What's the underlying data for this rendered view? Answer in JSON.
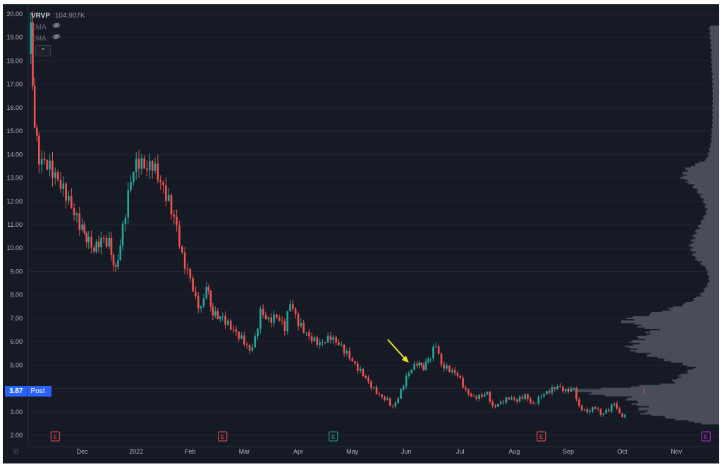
{
  "legend": {
    "indicator": "VRVP",
    "indicator_value": "104.907K",
    "ema_1": "EMA",
    "ema_2": "EMA",
    "eye_icon": "eye-off-icon"
  },
  "collapse_icon": "chevron-up-icon",
  "settings_icon": "gear-icon",
  "price_tag": {
    "value": "3.87",
    "label": "Post"
  },
  "colors": {
    "background": "#161a25",
    "grid": "#222633",
    "up": "#26a69a",
    "down": "#ef5350",
    "volume_profile": "#5b5f6b",
    "arrow": "#f0e422",
    "axis_text": "#b2b5be",
    "earnings": "#ef5350",
    "earnings_up": "#26a69a",
    "earnings_future": "#c030d6"
  },
  "chart_data": {
    "type": "candlestick",
    "ylim": [
      2,
      20.2
    ],
    "y_ticks": [
      "2.00",
      "3.00",
      "4.00",
      "5.00",
      "6.00",
      "7.00",
      "8.00",
      "9.00",
      "10.00",
      "11.00",
      "12.00",
      "13.00",
      "14.00",
      "15.00",
      "16.00",
      "17.00",
      "18.00",
      "19.00",
      "20.00"
    ],
    "x_ticks": [
      "Dec",
      "2022",
      "Feb",
      "Mar",
      "Apr",
      "May",
      "Jun",
      "Jul",
      "Aug",
      "Sep",
      "Oct",
      "Nov"
    ],
    "earnings_markers": [
      {
        "label": "E",
        "x_after": "Nov",
        "kind": "down"
      },
      {
        "label": "E",
        "x_after": "Mar",
        "kind": "down"
      },
      {
        "label": "E",
        "x_after": "May",
        "kind": "up"
      },
      {
        "label": "E",
        "x_after": "Aug",
        "kind": "down"
      },
      {
        "label": "E",
        "x_after": "Nov",
        "kind": "future"
      }
    ],
    "close_series": [
      {
        "m": 0.0,
        "p": 18.3
      },
      {
        "m": 0.05,
        "p": 19.4
      },
      {
        "m": 0.12,
        "p": 15.2
      },
      {
        "m": 0.2,
        "p": 13.8
      },
      {
        "m": 0.35,
        "p": 13.6
      },
      {
        "m": 0.5,
        "p": 13.1
      },
      {
        "m": 0.7,
        "p": 12.3
      },
      {
        "m": 0.85,
        "p": 11.5
      },
      {
        "m": 1.0,
        "p": 10.8
      },
      {
        "m": 1.12,
        "p": 10.3
      },
      {
        "m": 1.22,
        "p": 9.9
      },
      {
        "m": 1.35,
        "p": 10.4
      },
      {
        "m": 1.5,
        "p": 10.2
      },
      {
        "m": 1.62,
        "p": 9.0
      },
      {
        "m": 1.75,
        "p": 10.8
      },
      {
        "m": 1.85,
        "p": 12.3
      },
      {
        "m": 1.95,
        "p": 13.4
      },
      {
        "m": 2.05,
        "p": 13.7
      },
      {
        "m": 2.2,
        "p": 13.4
      },
      {
        "m": 2.3,
        "p": 13.6
      },
      {
        "m": 2.45,
        "p": 12.8
      },
      {
        "m": 2.6,
        "p": 12.0
      },
      {
        "m": 2.75,
        "p": 10.9
      },
      {
        "m": 2.85,
        "p": 9.6
      },
      {
        "m": 3.0,
        "p": 8.7
      },
      {
        "m": 3.1,
        "p": 7.8
      },
      {
        "m": 3.2,
        "p": 7.4
      },
      {
        "m": 3.3,
        "p": 8.4
      },
      {
        "m": 3.42,
        "p": 7.2
      },
      {
        "m": 3.6,
        "p": 7.0
      },
      {
        "m": 3.8,
        "p": 6.5
      },
      {
        "m": 4.0,
        "p": 6.0
      },
      {
        "m": 4.1,
        "p": 5.6
      },
      {
        "m": 4.2,
        "p": 6.1
      },
      {
        "m": 4.3,
        "p": 7.3
      },
      {
        "m": 4.45,
        "p": 6.9
      },
      {
        "m": 4.6,
        "p": 7.1
      },
      {
        "m": 4.75,
        "p": 6.6
      },
      {
        "m": 4.85,
        "p": 7.7
      },
      {
        "m": 5.0,
        "p": 6.8
      },
      {
        "m": 5.2,
        "p": 6.2
      },
      {
        "m": 5.4,
        "p": 5.9
      },
      {
        "m": 5.6,
        "p": 6.2
      },
      {
        "m": 5.75,
        "p": 5.9
      },
      {
        "m": 5.9,
        "p": 5.5
      },
      {
        "m": 6.05,
        "p": 5.0
      },
      {
        "m": 6.2,
        "p": 4.6
      },
      {
        "m": 6.35,
        "p": 4.1
      },
      {
        "m": 6.5,
        "p": 3.7
      },
      {
        "m": 6.65,
        "p": 3.5
      },
      {
        "m": 6.75,
        "p": 3.2
      },
      {
        "m": 6.85,
        "p": 3.6
      },
      {
        "m": 6.95,
        "p": 4.2
      },
      {
        "m": 7.05,
        "p": 4.7
      },
      {
        "m": 7.2,
        "p": 5.1
      },
      {
        "m": 7.32,
        "p": 4.9
      },
      {
        "m": 7.45,
        "p": 5.4
      },
      {
        "m": 7.55,
        "p": 5.9
      },
      {
        "m": 7.65,
        "p": 5.0
      },
      {
        "m": 7.8,
        "p": 4.8
      },
      {
        "m": 7.95,
        "p": 4.6
      },
      {
        "m": 8.1,
        "p": 3.9
      },
      {
        "m": 8.25,
        "p": 3.6
      },
      {
        "m": 8.4,
        "p": 3.7
      },
      {
        "m": 8.5,
        "p": 3.8
      },
      {
        "m": 8.6,
        "p": 3.2
      },
      {
        "m": 8.75,
        "p": 3.4
      },
      {
        "m": 8.9,
        "p": 3.6
      },
      {
        "m": 9.05,
        "p": 3.5
      },
      {
        "m": 9.2,
        "p": 3.7
      },
      {
        "m": 9.35,
        "p": 3.3
      },
      {
        "m": 9.5,
        "p": 3.7
      },
      {
        "m": 9.65,
        "p": 3.9
      },
      {
        "m": 9.8,
        "p": 4.1
      },
      {
        "m": 9.95,
        "p": 3.9
      },
      {
        "m": 10.1,
        "p": 4.0
      },
      {
        "m": 10.2,
        "p": 3.2
      },
      {
        "m": 10.35,
        "p": 3.0
      },
      {
        "m": 10.5,
        "p": 3.2
      },
      {
        "m": 10.6,
        "p": 2.9
      },
      {
        "m": 10.75,
        "p": 3.1
      },
      {
        "m": 10.85,
        "p": 3.4
      },
      {
        "m": 10.95,
        "p": 2.9
      },
      {
        "m": 11.05,
        "p": 2.8
      }
    ],
    "post_market": {
      "p": 3.87
    },
    "volume_profile": [
      {
        "p": 2.5,
        "v": 20
      },
      {
        "p": 2.9,
        "v": 90
      },
      {
        "p": 3.2,
        "v": 95
      },
      {
        "p": 3.6,
        "v": 110
      },
      {
        "p": 3.9,
        "v": 185
      },
      {
        "p": 4.2,
        "v": 60
      },
      {
        "p": 4.6,
        "v": 45
      },
      {
        "p": 4.9,
        "v": 30
      },
      {
        "p": 5.3,
        "v": 75
      },
      {
        "p": 5.7,
        "v": 110
      },
      {
        "p": 6.1,
        "v": 100
      },
      {
        "p": 6.5,
        "v": 80
      },
      {
        "p": 6.9,
        "v": 120
      },
      {
        "p": 7.3,
        "v": 70
      },
      {
        "p": 7.7,
        "v": 35
      },
      {
        "p": 8.1,
        "v": 20
      },
      {
        "p": 8.6,
        "v": 12
      },
      {
        "p": 9.1,
        "v": 15
      },
      {
        "p": 9.6,
        "v": 30
      },
      {
        "p": 10.1,
        "v": 35
      },
      {
        "p": 10.6,
        "v": 30
      },
      {
        "p": 11.1,
        "v": 22
      },
      {
        "p": 11.6,
        "v": 15
      },
      {
        "p": 12.1,
        "v": 20
      },
      {
        "p": 12.6,
        "v": 30
      },
      {
        "p": 13.0,
        "v": 45
      },
      {
        "p": 13.4,
        "v": 40
      },
      {
        "p": 13.8,
        "v": 15
      },
      {
        "p": 14.5,
        "v": 10
      },
      {
        "p": 15.5,
        "v": 8
      },
      {
        "p": 17.0,
        "v": 8
      },
      {
        "p": 18.5,
        "v": 10
      },
      {
        "p": 19.5,
        "v": 12
      }
    ],
    "annotation": {
      "type": "arrow",
      "m": 7.1,
      "p": 5.1
    }
  }
}
